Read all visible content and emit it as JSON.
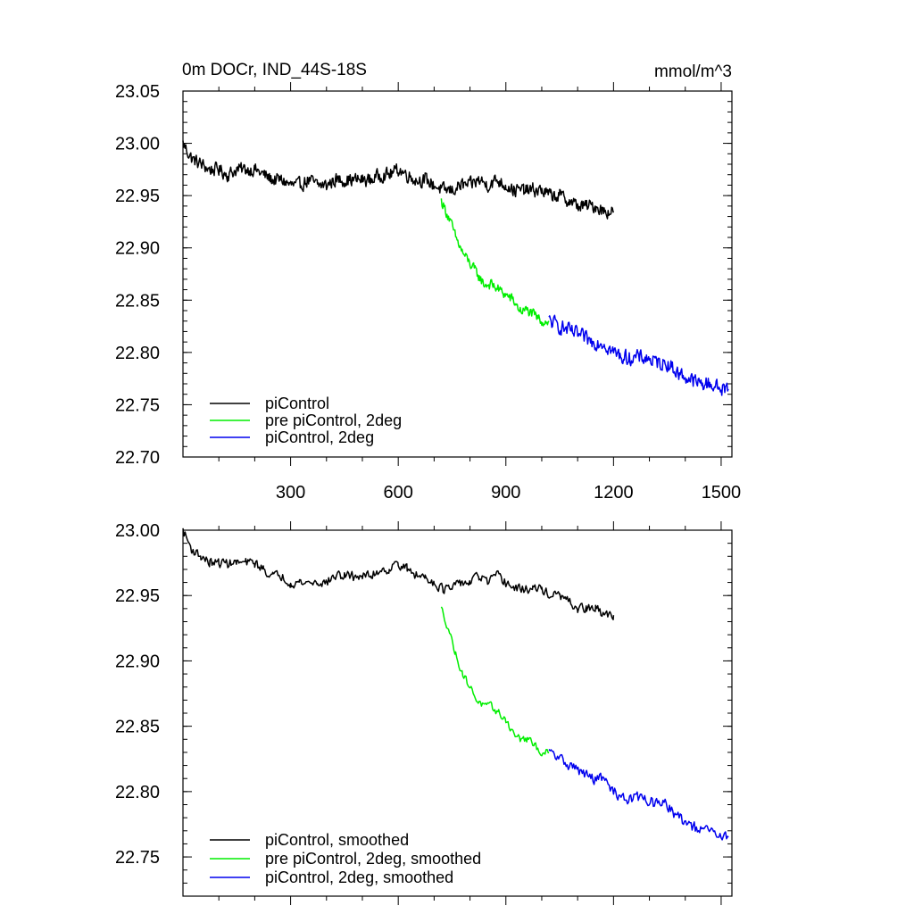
{
  "chart_data": [
    {
      "type": "line",
      "title_left": "0m DOCr, IND_44S-18S",
      "title_right": "mmol/m^3",
      "xlabel": "",
      "ylabel": "",
      "xlim": [
        0,
        1530
      ],
      "ylim": [
        22.7,
        23.05
      ],
      "x_ticks": [
        300,
        600,
        900,
        1200,
        1500
      ],
      "x_tick_labels": [
        "300",
        "600",
        "900",
        "1200",
        "1500"
      ],
      "y_ticks": [
        22.7,
        22.75,
        22.8,
        22.85,
        22.9,
        22.95,
        23.0,
        23.05
      ],
      "y_tick_labels": [
        "22.70",
        "22.75",
        "22.80",
        "22.85",
        "22.90",
        "22.95",
        "23.00",
        "23.05"
      ],
      "grid": false,
      "legend_position": "bottom-left",
      "series": [
        {
          "name": "piControl",
          "color": "#000000",
          "x": [
            0,
            25,
            50,
            75,
            100,
            125,
            150,
            175,
            200,
            225,
            250,
            275,
            300,
            325,
            350,
            375,
            400,
            425,
            450,
            475,
            500,
            525,
            550,
            575,
            600,
            625,
            650,
            675,
            700,
            725,
            750,
            775,
            800,
            825,
            850,
            875,
            900,
            925,
            950,
            975,
            1000,
            1025,
            1050,
            1075,
            1100,
            1125,
            1150,
            1175,
            1200
          ],
          "y": [
            23.0,
            22.985,
            22.98,
            22.975,
            22.975,
            22.97,
            22.975,
            22.975,
            22.975,
            22.97,
            22.965,
            22.965,
            22.96,
            22.96,
            22.965,
            22.96,
            22.96,
            22.965,
            22.965,
            22.965,
            22.965,
            22.965,
            22.97,
            22.97,
            22.975,
            22.97,
            22.965,
            22.965,
            22.96,
            22.955,
            22.955,
            22.96,
            22.96,
            22.965,
            22.96,
            22.965,
            22.96,
            22.955,
            22.955,
            22.955,
            22.955,
            22.95,
            22.95,
            22.945,
            22.94,
            22.94,
            22.94,
            22.935,
            22.935
          ],
          "noise": 0.009
        },
        {
          "name": "pre piControl, 2deg",
          "color": "#00ee00",
          "x": [
            720,
            740,
            760,
            780,
            800,
            820,
            840,
            860,
            880,
            900,
            920,
            940,
            960,
            980,
            1000,
            1020
          ],
          "y": [
            22.945,
            22.93,
            22.91,
            22.895,
            22.885,
            22.875,
            22.865,
            22.865,
            22.86,
            22.855,
            22.85,
            22.84,
            22.84,
            22.835,
            22.83,
            22.83
          ],
          "noise": 0.007
        },
        {
          "name": "piControl, 2deg",
          "color": "#0000ee",
          "x": [
            1020,
            1050,
            1080,
            1110,
            1140,
            1170,
            1200,
            1230,
            1260,
            1290,
            1320,
            1350,
            1380,
            1410,
            1440,
            1470,
            1500,
            1520
          ],
          "y": [
            22.83,
            22.825,
            22.82,
            22.815,
            22.81,
            22.81,
            22.8,
            22.795,
            22.795,
            22.795,
            22.79,
            22.79,
            22.78,
            22.775,
            22.77,
            22.77,
            22.765,
            22.765
          ],
          "noise": 0.01
        }
      ]
    },
    {
      "type": "line",
      "xlabel": "",
      "ylabel": "",
      "xlim": [
        0,
        1530
      ],
      "ylim": [
        22.72,
        23.0
      ],
      "x_ticks": [
        300,
        600,
        900,
        1200,
        1500
      ],
      "y_ticks": [
        22.75,
        22.8,
        22.85,
        22.9,
        22.95,
        23.0
      ],
      "y_tick_labels": [
        "22.75",
        "22.80",
        "22.85",
        "22.90",
        "22.95",
        "23.00"
      ],
      "grid": false,
      "legend_position": "bottom-left",
      "series": [
        {
          "name": "piControl, smoothed",
          "color": "#000000",
          "x": [
            0,
            25,
            50,
            75,
            100,
            125,
            150,
            175,
            200,
            225,
            250,
            275,
            300,
            325,
            350,
            375,
            400,
            425,
            450,
            475,
            500,
            525,
            550,
            575,
            600,
            625,
            650,
            675,
            700,
            725,
            750,
            775,
            800,
            825,
            850,
            875,
            900,
            925,
            950,
            975,
            1000,
            1025,
            1050,
            1075,
            1100,
            1125,
            1150,
            1175,
            1200
          ],
          "y": [
            23.0,
            22.985,
            22.98,
            22.975,
            22.975,
            22.975,
            22.975,
            22.975,
            22.975,
            22.97,
            22.965,
            22.965,
            22.96,
            22.96,
            22.96,
            22.96,
            22.96,
            22.965,
            22.965,
            22.965,
            22.965,
            22.965,
            22.97,
            22.97,
            22.975,
            22.97,
            22.965,
            22.965,
            22.96,
            22.955,
            22.955,
            22.96,
            22.96,
            22.965,
            22.96,
            22.965,
            22.96,
            22.955,
            22.955,
            22.955,
            22.955,
            22.95,
            22.95,
            22.945,
            22.94,
            22.94,
            22.94,
            22.935,
            22.935
          ],
          "noise": 0.005
        },
        {
          "name": "pre piControl, 2deg, smoothed",
          "color": "#00ee00",
          "x": [
            720,
            740,
            760,
            780,
            800,
            820,
            840,
            860,
            880,
            900,
            920,
            940,
            960,
            980,
            1000,
            1020
          ],
          "y": [
            22.94,
            22.925,
            22.905,
            22.89,
            22.88,
            22.87,
            22.865,
            22.865,
            22.86,
            22.855,
            22.845,
            22.84,
            22.84,
            22.835,
            22.83,
            22.83
          ],
          "noise": 0.004
        },
        {
          "name": "piControl, 2deg, smoothed",
          "color": "#0000ee",
          "x": [
            1020,
            1050,
            1080,
            1110,
            1140,
            1170,
            1200,
            1230,
            1260,
            1290,
            1320,
            1350,
            1380,
            1410,
            1440,
            1470,
            1500,
            1520
          ],
          "y": [
            22.83,
            22.825,
            22.82,
            22.815,
            22.81,
            22.81,
            22.8,
            22.795,
            22.795,
            22.795,
            22.79,
            22.79,
            22.78,
            22.775,
            22.77,
            22.77,
            22.765,
            22.765
          ],
          "noise": 0.006
        }
      ]
    }
  ]
}
